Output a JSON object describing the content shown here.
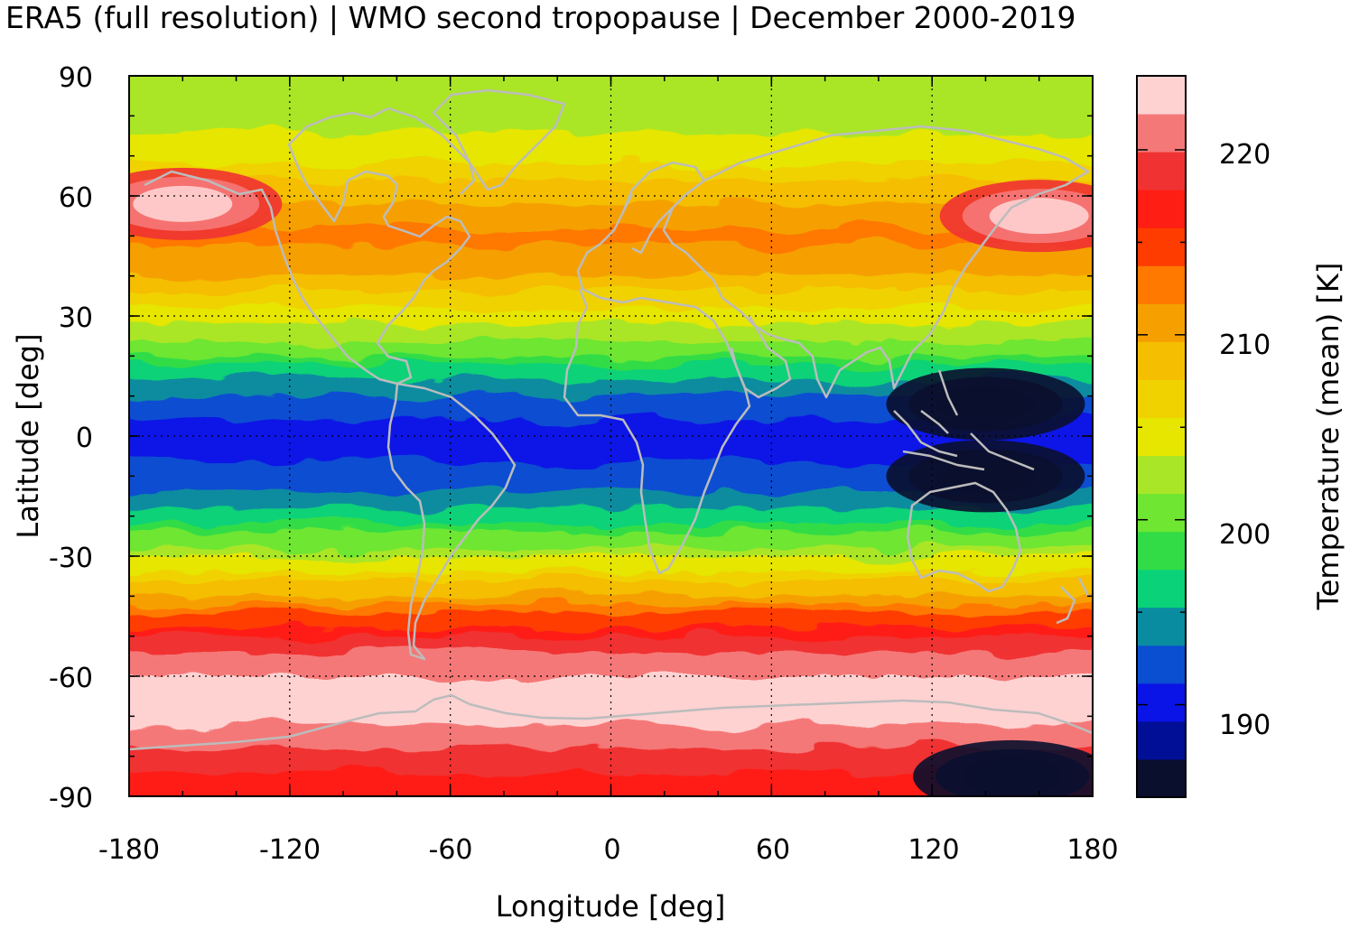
{
  "title": "ERA5 (full resolution) | WMO second tropopause | December 2000-2019",
  "map": {
    "x_label": "Longitude [deg]",
    "y_label": "Latitude [deg]",
    "x_ticks": [
      "-180",
      "-120",
      "-60",
      "0",
      "60",
      "120",
      "180"
    ],
    "y_ticks": [
      "90",
      "60",
      "30",
      "0",
      "-30",
      "-60",
      "-90"
    ],
    "x_range": [
      -180,
      180
    ],
    "y_range": [
      -90,
      90
    ],
    "grid": "dotted",
    "coastline_color": "#b8b8b8"
  },
  "colorbar": {
    "label": "Temperature (mean) [K]",
    "ticks": [
      "220",
      "210",
      "200",
      "190"
    ],
    "range": [
      185,
      224
    ],
    "colors": [
      "#0a0f2e",
      "#000f96",
      "#0a14e6",
      "#0a4ed2",
      "#0a8ca0",
      "#0ad278",
      "#32dc46",
      "#6ee632",
      "#aae628",
      "#e6e600",
      "#f0d200",
      "#f5be00",
      "#f5a000",
      "#ff7800",
      "#ff3c00",
      "#ff1e14",
      "#f03232",
      "#f57878",
      "#ffd2d2"
    ]
  },
  "chart_data": {
    "type": "heatmap",
    "title": "ERA5 (full resolution) | WMO second tropopause | December 2000-2019",
    "xlabel": "Longitude [deg]",
    "ylabel": "Latitude [deg]",
    "xlim": [
      -180,
      180
    ],
    "ylim": [
      -90,
      90
    ],
    "colorbar_label": "Temperature (mean) [K]",
    "colorbar_range": [
      185,
      224
    ],
    "zonal_mean_profile": [
      {
        "lat": 90,
        "value": 202
      },
      {
        "lat": 80,
        "value": 202
      },
      {
        "lat": 70,
        "value": 205
      },
      {
        "lat": 60,
        "value": 209
      },
      {
        "lat": 50,
        "value": 212
      },
      {
        "lat": 40,
        "value": 210
      },
      {
        "lat": 30,
        "value": 205
      },
      {
        "lat": 20,
        "value": 199
      },
      {
        "lat": 10,
        "value": 193
      },
      {
        "lat": 0,
        "value": 190
      },
      {
        "lat": -10,
        "value": 192
      },
      {
        "lat": -20,
        "value": 196
      },
      {
        "lat": -30,
        "value": 203
      },
      {
        "lat": -40,
        "value": 210
      },
      {
        "lat": -50,
        "value": 218
      },
      {
        "lat": -60,
        "value": 222
      },
      {
        "lat": -70,
        "value": 223
      },
      {
        "lat": -80,
        "value": 219
      },
      {
        "lat": -90,
        "value": 216
      }
    ],
    "notable_features": [
      {
        "lon": -160,
        "lat": 58,
        "value": 222
      },
      {
        "lon": 160,
        "lat": 55,
        "value": 222
      },
      {
        "lon": 140,
        "lat": 8,
        "value": 187
      },
      {
        "lon": 140,
        "lat": -10,
        "value": 187
      },
      {
        "lon": 150,
        "lat": -85,
        "value": 186
      }
    ]
  }
}
